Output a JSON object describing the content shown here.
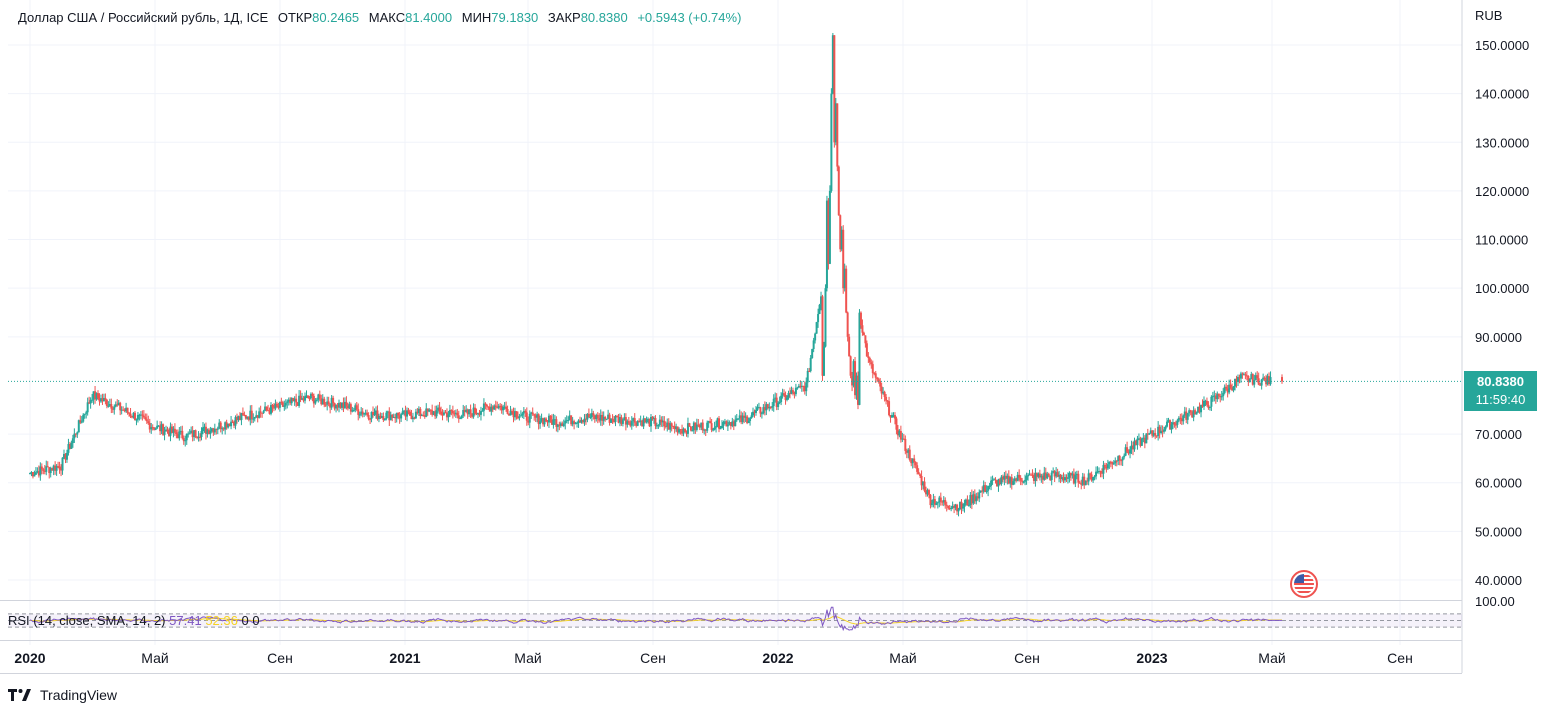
{
  "header": {
    "symbol": "Доллар США / Российский рубль, 1Д, ICE",
    "open_label": "ОТКР",
    "open": "80.2465",
    "high_label": "МАКС",
    "high": "81.4000",
    "low_label": "МИН",
    "low": "79.1830",
    "close_label": "ЗАКР",
    "close": "80.8380",
    "change": "+0.5943 (+0.74%)"
  },
  "price_axis": {
    "currency": "RUB",
    "ticks": [
      "150.0000",
      "140.0000",
      "130.0000",
      "120.0000",
      "110.0000",
      "100.0000",
      "90.0000",
      "70.0000",
      "60.0000",
      "50.0000",
      "40.0000"
    ]
  },
  "price_tag": {
    "price": "80.8380",
    "countdown": "11:59:40"
  },
  "rsi": {
    "label": "RSI (14, close, SMA, 14, 2)",
    "value": "57.41",
    "sma_value": "52.36",
    "extra1": "0",
    "extra2": "0",
    "axis_tick": "100.00"
  },
  "time_axis": [
    {
      "label": "2020",
      "bold": true
    },
    {
      "label": "Май",
      "bold": false
    },
    {
      "label": "Сен",
      "bold": false
    },
    {
      "label": "2021",
      "bold": true
    },
    {
      "label": "Май",
      "bold": false
    },
    {
      "label": "Сен",
      "bold": false
    },
    {
      "label": "2022",
      "bold": true
    },
    {
      "label": "Май",
      "bold": false
    },
    {
      "label": "Сен",
      "bold": false
    },
    {
      "label": "2023",
      "bold": true
    },
    {
      "label": "Май",
      "bold": false
    },
    {
      "label": "Сен",
      "bold": false
    }
  ],
  "brand": {
    "name": "TradingView"
  },
  "colors": {
    "up": "#26a69a",
    "down": "#ef5350",
    "rsi": "#7e57c2",
    "rsi_sma": "#f5d327",
    "last_price_line": "#26a69a"
  },
  "chart_data": {
    "type": "candlestick",
    "title": "Доллар США / Российский рубль, 1Д, ICE",
    "ylabel": "RUB",
    "ylim": [
      37,
      155
    ],
    "x": [
      "2020-01",
      "2020-02",
      "2020-03",
      "2020-04",
      "2020-05",
      "2020-06",
      "2020-07",
      "2020-08",
      "2020-09",
      "2020-10",
      "2020-11",
      "2020-12",
      "2021-01",
      "2021-02",
      "2021-03",
      "2021-04",
      "2021-05",
      "2021-06",
      "2021-07",
      "2021-08",
      "2021-09",
      "2021-10",
      "2021-11",
      "2021-12",
      "2022-01",
      "2022-02",
      "2022-03",
      "2022-04",
      "2022-05",
      "2022-06",
      "2022-07",
      "2022-08",
      "2022-09",
      "2022-10",
      "2022-11",
      "2022-12",
      "2023-01",
      "2023-02",
      "2023-03",
      "2023-04",
      "2023-05"
    ],
    "series": [
      {
        "values": [
          62.0,
          63.5,
          78.0,
          75.0,
          71.5,
          69.5,
          71.5,
          73.8,
          75.5,
          77.5,
          76.0,
          74.0,
          73.8,
          74.5,
          74.0,
          76.0,
          73.5,
          72.5,
          73.5,
          73.0,
          72.5,
          71.0,
          72.0,
          73.0,
          76.5,
          80.0,
          120.0,
          85.0,
          70.0,
          56.5,
          55.0,
          60.0,
          61.0,
          61.5,
          60.5,
          65.0,
          69.5,
          73.0,
          76.5,
          81.5,
          80.8
        ]
      }
    ],
    "last_price": 80.838,
    "rsi": {
      "value": 57.41,
      "sma": 52.36,
      "ylim": [
        0,
        100
      ],
      "bands": [
        30,
        50,
        70
      ]
    }
  }
}
